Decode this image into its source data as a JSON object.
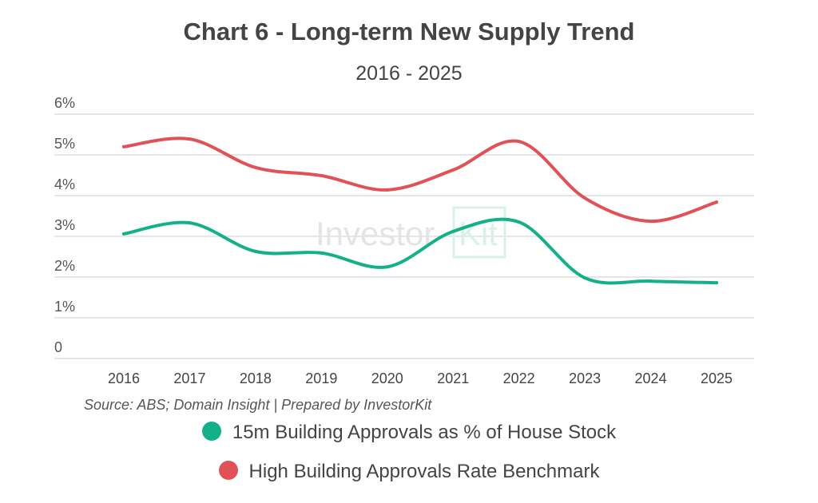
{
  "chart_data": {
    "type": "line",
    "title": "Chart 6 - Long-term New Supply Trend",
    "subtitle": "2016 - 2025",
    "categories": [
      "2016",
      "2017",
      "2018",
      "2019",
      "2020",
      "2021",
      "2022",
      "2023",
      "2024",
      "2025"
    ],
    "yticks": [
      "0",
      "1%",
      "2%",
      "3%",
      "4%",
      "5%",
      "6%"
    ],
    "ylim": [
      0,
      6
    ],
    "grid": true,
    "legend_placement": "bottom",
    "series": [
      {
        "name": "15m Building Approvals as % of House Stock",
        "color": "#14b08a",
        "values": [
          3.06,
          3.33,
          2.63,
          2.59,
          2.25,
          3.12,
          3.35,
          1.98,
          1.9,
          1.86
        ]
      },
      {
        "name": "High Building Approvals Rate Benchmark",
        "color": "#e05256",
        "values": [
          5.2,
          5.39,
          4.69,
          4.49,
          4.14,
          4.63,
          5.33,
          3.94,
          3.37,
          3.84
        ]
      }
    ],
    "source": "Source: ABS; Domain Insight | Prepared by InvestorKit",
    "watermark": "InvestorKit"
  }
}
